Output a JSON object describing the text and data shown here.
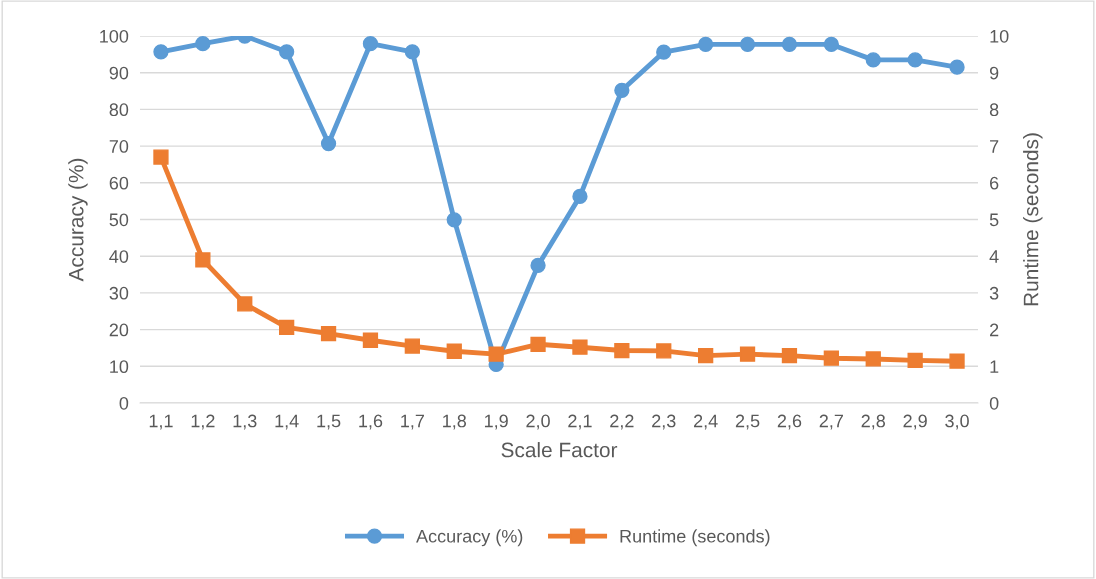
{
  "chart_data": {
    "type": "line",
    "xlabel": "Scale Factor",
    "ylabel": "Accuracy (%)",
    "y2label": "Runtime (seconds)",
    "categories": [
      "1,1",
      "1,2",
      "1,3",
      "1,4",
      "1,5",
      "1,6",
      "1,7",
      "1,8",
      "1,9",
      "2,0",
      "2,1",
      "2,2",
      "2,3",
      "2,4",
      "2,5",
      "2,6",
      "2,7",
      "2,8",
      "2,9",
      "3,0"
    ],
    "series": [
      {
        "name": "Accuracy (%)",
        "color": "#5b9bd5",
        "marker": "circle",
        "values": [
          95.7,
          97.9,
          100,
          95.7,
          70.7,
          97.9,
          95.7,
          49.9,
          10.5,
          37.5,
          56.3,
          85.2,
          95.6,
          97.7,
          97.7,
          97.7,
          97.7,
          93.5,
          93.5,
          91.5
        ]
      },
      {
        "name": "Runtime (seconds)",
        "color": "#ed7d31",
        "marker": "square",
        "axis": "y2",
        "values": [
          6.7,
          3.9,
          2.7,
          2.06,
          1.89,
          1.71,
          1.55,
          1.41,
          1.33,
          1.6,
          1.52,
          1.43,
          1.42,
          1.29,
          1.33,
          1.29,
          1.22,
          1.2,
          1.16,
          1.14
        ]
      }
    ],
    "ylim": [
      0,
      100
    ],
    "yticks": [
      0,
      10,
      20,
      30,
      40,
      50,
      60,
      70,
      80,
      90,
      100
    ],
    "y2lim": [
      0,
      10
    ],
    "y2ticks": [
      0,
      1,
      2,
      3,
      4,
      5,
      6,
      7,
      8,
      9,
      10
    ],
    "grid": "y",
    "legend": "bottom",
    "line_style": "solid"
  }
}
